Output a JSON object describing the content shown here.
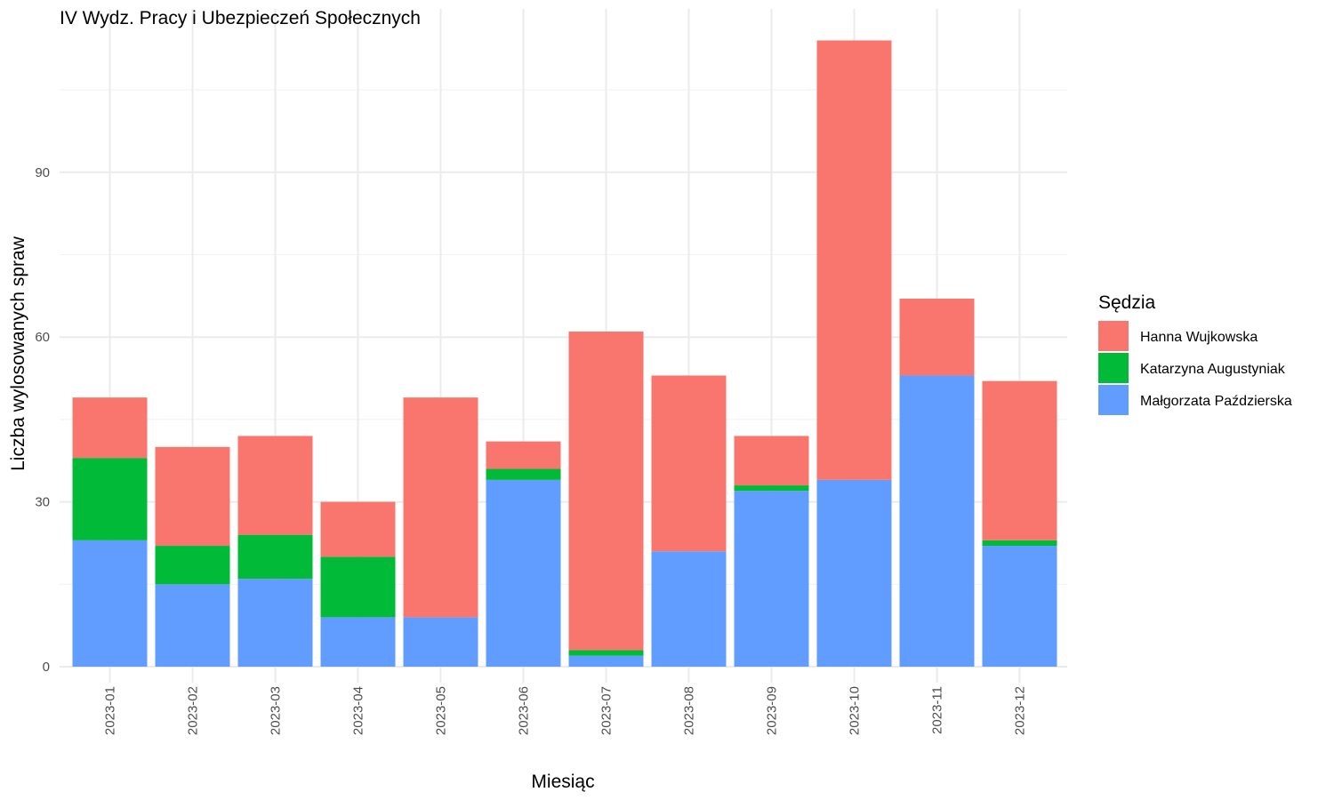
{
  "chart_data": {
    "type": "bar",
    "stacked": true,
    "title": "IV Wydz. Pracy i Ubezpieczeń Społecznych",
    "xlabel": "Miesiąc",
    "ylabel": "Liczba wylosowanych spraw",
    "categories": [
      "2023-01",
      "2023-02",
      "2023-03",
      "2023-04",
      "2023-05",
      "2023-06",
      "2023-07",
      "2023-08",
      "2023-09",
      "2023-10",
      "2023-11",
      "2023-12"
    ],
    "ylim": [
      0,
      118
    ],
    "yticks": [
      0,
      30,
      60,
      90
    ],
    "grid": true,
    "legend": {
      "title": "Sędzia",
      "position": "right"
    },
    "series": [
      {
        "name": "Małgorzata Paździerska",
        "color": "#619CFF",
        "values": [
          23,
          15,
          16,
          9,
          9,
          34,
          2,
          21,
          32,
          34,
          53,
          22
        ]
      },
      {
        "name": "Katarzyna Augustyniak",
        "color": "#00BA38",
        "values": [
          15,
          7,
          8,
          11,
          0,
          2,
          1,
          0,
          1,
          0,
          0,
          1
        ]
      },
      {
        "name": "Hanna Wujkowska",
        "color": "#F8766D",
        "values": [
          11,
          18,
          18,
          10,
          40,
          5,
          58,
          32,
          9,
          80,
          14,
          29
        ]
      }
    ],
    "legend_order": [
      "Hanna Wujkowska",
      "Katarzyna Augustyniak",
      "Małgorzata Paździerska"
    ]
  }
}
